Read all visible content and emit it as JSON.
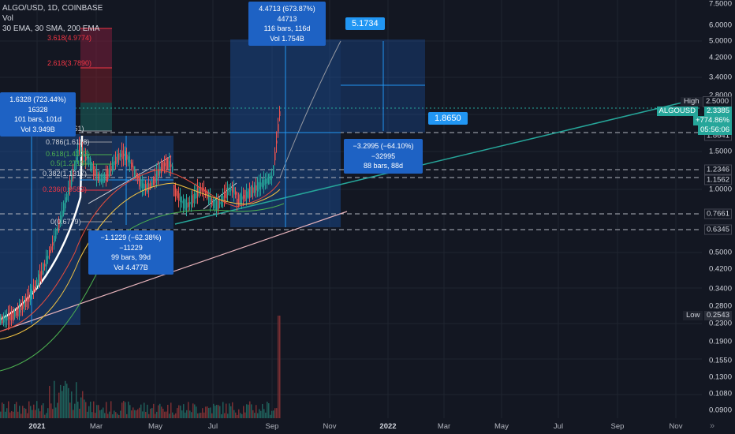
{
  "header": {
    "symbol_line": "ALGO/USD, 1D, COINBASE",
    "vol_line": "Vol",
    "indicators_line": "30 EMA, 30 SMA, 200 EMA"
  },
  "y_axis": {
    "ticks": [
      "7.5000",
      "6.0000",
      "5.0000",
      "4.2000",
      "3.4000",
      "2.8000",
      "1.8641",
      "1.5000",
      "1.2346",
      "1.1562",
      "1.0000",
      "0.7661",
      "0.6345",
      "0.5000",
      "0.4200",
      "0.3400",
      "0.2800",
      "0.2300",
      "0.1900",
      "0.1550",
      "0.1300",
      "0.1080",
      "0.0900"
    ]
  },
  "x_axis": {
    "ticks": [
      "2021",
      "Mar",
      "May",
      "Jul",
      "Sep",
      "Nov",
      "2022",
      "Mar",
      "May",
      "Jul",
      "Sep",
      "Nov"
    ]
  },
  "price_tags": {
    "high_label": "High",
    "high_value": "2.5000",
    "symbol_tag": "ALGOUSD",
    "current_price": "2.3385",
    "change": "+774.86%",
    "countdown": "05:56:06",
    "low_label": "Low",
    "low_value": "0.2543",
    "accent": "#26a69a"
  },
  "fib_levels": [
    {
      "text": "3.618(4.9774)",
      "color": "#f23645"
    },
    {
      "text": "2.618(3.7890)",
      "color": "#f23645"
    },
    {
      "text": "1(1.8661)",
      "color": "#d1d4dc"
    },
    {
      "text": "0.786(1.6118)",
      "color": "#d1d4dc"
    },
    {
      "text": "0.618(1.4122)",
      "color": "#4caf50"
    },
    {
      "text": "0.5(1.2719)",
      "color": "#4caf50"
    },
    {
      "text": "0.382(1.1317)",
      "color": "#d1d4dc"
    },
    {
      "text": "0.236(0.9582)",
      "color": "#f23645"
    },
    {
      "text": "0(0.6779)",
      "color": "#d1d4dc"
    }
  ],
  "measure_boxes": [
    {
      "l1": "1.6328 (723.44%) 16328",
      "l2": "101 bars, 101d",
      "l3": "Vol 3.949B"
    },
    {
      "l1": "−1.1229 (−62.38%) −11229",
      "l2": "99 bars, 99d",
      "l3": "Vol 4.477B"
    },
    {
      "l1": "4.4713 (673.87%) 44713",
      "l2": "116 bars, 116d",
      "l3": "Vol 1.754B"
    },
    {
      "l1": "−3.2995 (−64.10%) −32995",
      "l2": "88 bars, 88d",
      "l3": ""
    }
  ],
  "callouts": [
    "5.1734",
    "1.8650"
  ],
  "grab_icon": "double-chevron-right-icon"
}
